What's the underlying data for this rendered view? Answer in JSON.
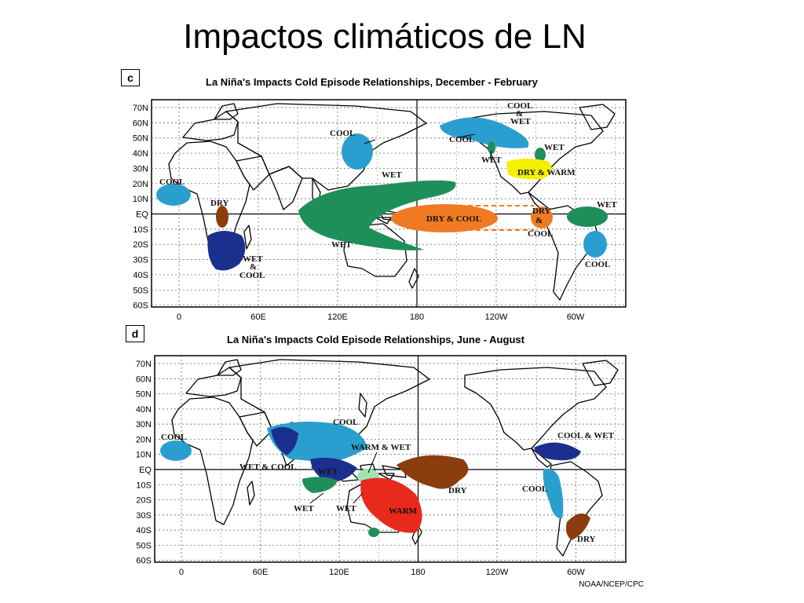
{
  "slide": {
    "title": "Impactos climáticos de LN",
    "credit": "NOAA/NCEP/CPC"
  },
  "colors": {
    "cool": "#2a9fcf",
    "wet": "#1f8f5a",
    "dry": "#8b3d0d",
    "wet_cool_dark": "#1b2f8f",
    "dry_cool": "#f07a22",
    "dry_warm": "#f5f000",
    "warm": "#e8291c",
    "warm_wet": "#9ee3b0"
  },
  "panels": [
    {
      "tag": "c",
      "title": "La Niña's Impacts Cold Episode Relationships, December - February",
      "lat_labels": [
        "70N",
        "60N",
        "50N",
        "40N",
        "30N",
        "20N",
        "10N",
        "EQ",
        "10S",
        "20S",
        "30S",
        "40S",
        "50S",
        "60S"
      ],
      "lon_labels": [
        "0",
        "60E",
        "120E",
        "180",
        "120W",
        "60W"
      ],
      "labels": {
        "cool_west_africa": "COOL",
        "cool_japan": "COOL",
        "cool_amp_wet_top": "COOL",
        "cool_amp_wet_amp": "&",
        "cool_amp_wet_bottom": "WET",
        "cool_nw_america": "COOL",
        "wet_nw_america": "WET",
        "wet_great_lakes": "WET",
        "dry_warm": "DRY & WARM",
        "wet_pacific": "WET",
        "dry_east_africa": "DRY",
        "wet_cool_top": "WET",
        "wet_cool_amp": "&",
        "wet_cool_bottom": "COOL",
        "wet_australia": "WET",
        "dry_cool_pacific": "DRY & COOL",
        "dry_cool_e_top": "DRY",
        "dry_cool_e_amp": "&",
        "dry_cool_e_bottom": "COOL",
        "wet_south_america": "WET",
        "cool_se_brazil": "COOL"
      }
    },
    {
      "tag": "d",
      "title": "La Niña's Impacts Cold Episode Relationships, June - August",
      "lat_labels": [
        "70N",
        "60N",
        "50N",
        "40N",
        "30N",
        "20N",
        "10N",
        "EQ",
        "10S",
        "20S",
        "30S",
        "40S",
        "50S",
        "60S"
      ],
      "lon_labels": [
        "0",
        "60E",
        "120E",
        "180",
        "120W",
        "60W"
      ],
      "labels": {
        "cool_west_africa": "COOL",
        "cool_asia": "COOL",
        "warm_wet": "WARM & WET",
        "wet_cool_indian": "WET & COOL",
        "wet_indonesia": "WET",
        "wet_w_australia": "WET",
        "wet_e_australia": "WET",
        "warm_australia": "WARM",
        "dry_pacific": "DRY",
        "cool_wet_caribbean": "COOL & WET",
        "cool_sa_coast": "COOL",
        "dry_sa": "DRY"
      }
    }
  ]
}
